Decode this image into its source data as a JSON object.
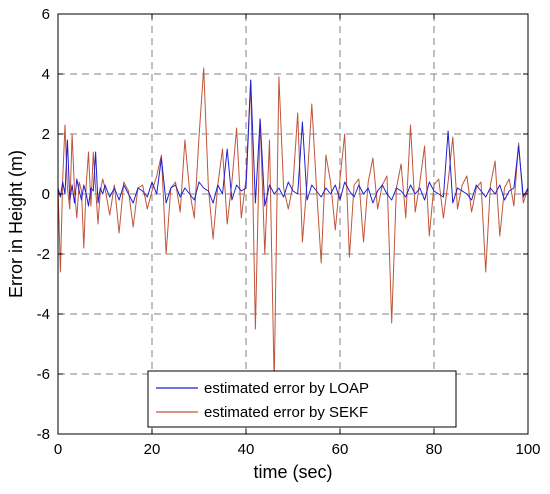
{
  "chart_data": {
    "type": "line",
    "title": "",
    "xlabel": "time (sec)",
    "ylabel": "Error in Height  (m)",
    "xlim": [
      0,
      100
    ],
    "ylim": [
      -8,
      6
    ],
    "xticks": [
      0,
      20,
      40,
      60,
      80,
      100
    ],
    "yticks": [
      -8,
      -6,
      -4,
      -2,
      0,
      2,
      4,
      6
    ],
    "grid": true,
    "grid_style": "dashed",
    "legend_position": "bottom-center",
    "colors": {
      "LOAP": "#1f1fd0",
      "SEKF": "#c0553a",
      "grid": "#808080"
    },
    "series": [
      {
        "name": "estimated error by LOAP",
        "color": "#1f1fd0",
        "x": [
          0,
          0.5,
          1,
          1.5,
          2,
          2.5,
          3,
          3.5,
          4,
          4.5,
          5,
          5.5,
          6,
          6.5,
          7,
          7.5,
          8,
          8.5,
          9,
          9.5,
          10,
          11,
          12,
          13,
          14,
          15,
          16,
          17,
          18,
          19,
          20,
          21,
          22,
          23,
          24,
          25,
          26,
          27,
          28,
          29,
          30,
          31,
          32,
          33,
          34,
          35,
          36,
          37,
          38,
          39,
          40,
          41,
          42,
          43,
          44,
          45,
          46,
          47,
          48,
          49,
          50,
          51,
          52,
          53,
          54,
          55,
          56,
          57,
          58,
          59,
          60,
          61,
          62,
          63,
          64,
          65,
          66,
          67,
          68,
          69,
          70,
          71,
          72,
          73,
          74,
          75,
          76,
          77,
          78,
          79,
          80,
          81,
          82,
          83,
          84,
          85,
          86,
          87,
          88,
          89,
          90,
          91,
          92,
          93,
          94,
          95,
          96,
          97,
          98,
          99,
          100
        ],
        "y": [
          0.2,
          -0.1,
          0.4,
          0.0,
          1.8,
          -0.2,
          0.3,
          -0.3,
          0.5,
          0.1,
          -0.2,
          0.3,
          0.0,
          -0.4,
          0.2,
          0.1,
          1.4,
          -0.3,
          0.2,
          0.0,
          0.3,
          -0.1,
          0.2,
          -0.2,
          0.3,
          0.0,
          -0.3,
          0.2,
          0.1,
          -0.1,
          0.4,
          0.0,
          1.2,
          -0.3,
          0.2,
          0.3,
          -0.1,
          0.2,
          0.0,
          -0.2,
          0.4,
          0.2,
          0.1,
          -0.3,
          0.3,
          0.0,
          1.5,
          -0.2,
          0.3,
          0.1,
          0.2,
          3.8,
          -0.3,
          2.5,
          -0.4,
          0.3,
          0.0,
          0.2,
          -0.1,
          0.4,
          0.1,
          0.0,
          2.4,
          -0.2,
          0.3,
          0.1,
          -0.1,
          0.2,
          0.0,
          0.3,
          -0.2,
          0.4,
          0.1,
          -0.1,
          0.3,
          0.0,
          0.2,
          -0.3,
          0.1,
          0.3,
          0.0,
          -0.2,
          0.2,
          0.1,
          -0.1,
          0.3,
          0.0,
          0.2,
          -0.2,
          0.4,
          0.1,
          0.0,
          -0.1,
          2.1,
          -0.3,
          0.2,
          0.1,
          0.0,
          -0.2,
          0.3,
          0.1,
          -0.1,
          0.2,
          0.0,
          0.3,
          -0.2,
          0.1,
          0.2,
          1.6,
          -0.1,
          0.2
        ]
      },
      {
        "name": "estimated error by  SEKF",
        "color": "#c0553a",
        "x": [
          0,
          0.5,
          1,
          1.5,
          2,
          2.5,
          3,
          3.5,
          4,
          4.5,
          5,
          5.5,
          6,
          6.5,
          7,
          7.5,
          8,
          8.5,
          9,
          9.5,
          10,
          11,
          12,
          13,
          14,
          15,
          16,
          17,
          18,
          19,
          20,
          21,
          22,
          23,
          24,
          25,
          26,
          27,
          28,
          29,
          30,
          31,
          32,
          33,
          34,
          35,
          36,
          37,
          38,
          39,
          40,
          41,
          42,
          43,
          44,
          45,
          46,
          47,
          48,
          49,
          50,
          51,
          52,
          53,
          54,
          55,
          56,
          57,
          58,
          59,
          60,
          61,
          62,
          63,
          64,
          65,
          66,
          67,
          68,
          69,
          70,
          71,
          72,
          73,
          74,
          75,
          76,
          77,
          78,
          79,
          80,
          81,
          82,
          83,
          84,
          85,
          86,
          87,
          88,
          89,
          90,
          91,
          92,
          93,
          94,
          95,
          96,
          97,
          98,
          99,
          100
        ],
        "y": [
          0.3,
          -2.6,
          0.5,
          2.3,
          0.2,
          -0.5,
          2.0,
          0.1,
          -0.8,
          0.4,
          0.1,
          -1.8,
          0.3,
          1.4,
          -0.4,
          1.4,
          0.2,
          -1.0,
          0.1,
          0.5,
          0.2,
          -0.7,
          0.3,
          -1.3,
          0.4,
          0.1,
          -1.1,
          0.2,
          0.3,
          -0.5,
          0.1,
          0.6,
          1.3,
          -2.0,
          0.2,
          0.4,
          -0.6,
          1.8,
          0.1,
          -0.8,
          1.9,
          4.2,
          0.2,
          -1.5,
          0.3,
          1.5,
          -1.0,
          0.4,
          2.2,
          -0.8,
          0.5,
          3.8,
          -4.5,
          2.5,
          -2.0,
          1.8,
          -6.3,
          3.9,
          0.2,
          -0.5,
          0.3,
          2.7,
          -1.6,
          0.4,
          3.0,
          0.2,
          -2.3,
          1.3,
          0.4,
          -1.2,
          0.5,
          2.0,
          -2.1,
          0.3,
          0.5,
          -1.6,
          0.4,
          1.2,
          -0.5,
          0.3,
          0.6,
          -4.3,
          0.2,
          1.0,
          -0.8,
          2.3,
          -0.6,
          0.4,
          1.6,
          -1.4,
          0.3,
          0.5,
          -0.8,
          0.4,
          1.9,
          -0.5,
          0.3,
          0.6,
          -0.6,
          0.2,
          0.4,
          -2.6,
          0.3,
          1.1,
          -1.4,
          0.2,
          0.5,
          -0.4,
          1.7,
          -0.3,
          0.2
        ]
      }
    ],
    "legend": [
      {
        "label": "estimated error by LOAP",
        "color": "#1f1fd0"
      },
      {
        "label": "estimated error by  SEKF",
        "color": "#c0553a"
      }
    ]
  }
}
